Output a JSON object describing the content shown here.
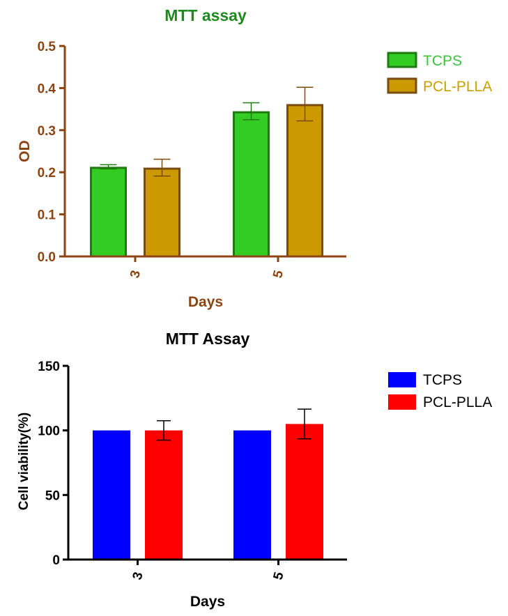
{
  "chart_data": [
    {
      "type": "bar",
      "title": "MTT assay",
      "xlabel": "Days",
      "ylabel": "OD",
      "ylim": [
        0,
        0.5
      ],
      "yticks": [
        "0.0",
        "0.1",
        "0.2",
        "0.3",
        "0.4",
        "0.5"
      ],
      "ytick_values": [
        0,
        0.1,
        0.2,
        0.3,
        0.4,
        0.5
      ],
      "categories": [
        "3",
        "5"
      ],
      "legend_position": "top-right",
      "colors": {
        "title": "#1e8a1e",
        "axis": "#8b4513",
        "legend_text": [
          "#3cc43c",
          "#c8a000"
        ]
      },
      "series": [
        {
          "name": "TCPS",
          "values": [
            0.213,
            0.345
          ],
          "errors": [
            0.005,
            0.02
          ],
          "fill": "#33cc22",
          "stroke": "#1f7a12"
        },
        {
          "name": "PCL-PLLA",
          "values": [
            0.211,
            0.362
          ],
          "errors": [
            0.02,
            0.04
          ],
          "fill": "#cc9900",
          "stroke": "#7a4a10"
        }
      ]
    },
    {
      "type": "bar",
      "title": "MTT Assay",
      "xlabel": "Days",
      "ylabel": "Cell viability(%)",
      "ylim": [
        0,
        150
      ],
      "yticks": [
        "0",
        "50",
        "100",
        "150"
      ],
      "ytick_values": [
        0,
        50,
        100,
        150
      ],
      "categories": [
        "3",
        "5"
      ],
      "legend_position": "top-right",
      "colors": {
        "title": "#000000",
        "axis": "#000000",
        "legend_text": [
          "#000000",
          "#000000"
        ]
      },
      "series": [
        {
          "name": "TCPS",
          "values": [
            100,
            100
          ],
          "errors": [
            0,
            0
          ],
          "fill": "#0000ff",
          "stroke": "#0000ff"
        },
        {
          "name": "PCL-PLLA",
          "values": [
            100,
            105
          ],
          "errors": [
            7.5,
            11.5
          ],
          "fill": "#ff0000",
          "stroke": "#ff0000"
        }
      ]
    }
  ]
}
